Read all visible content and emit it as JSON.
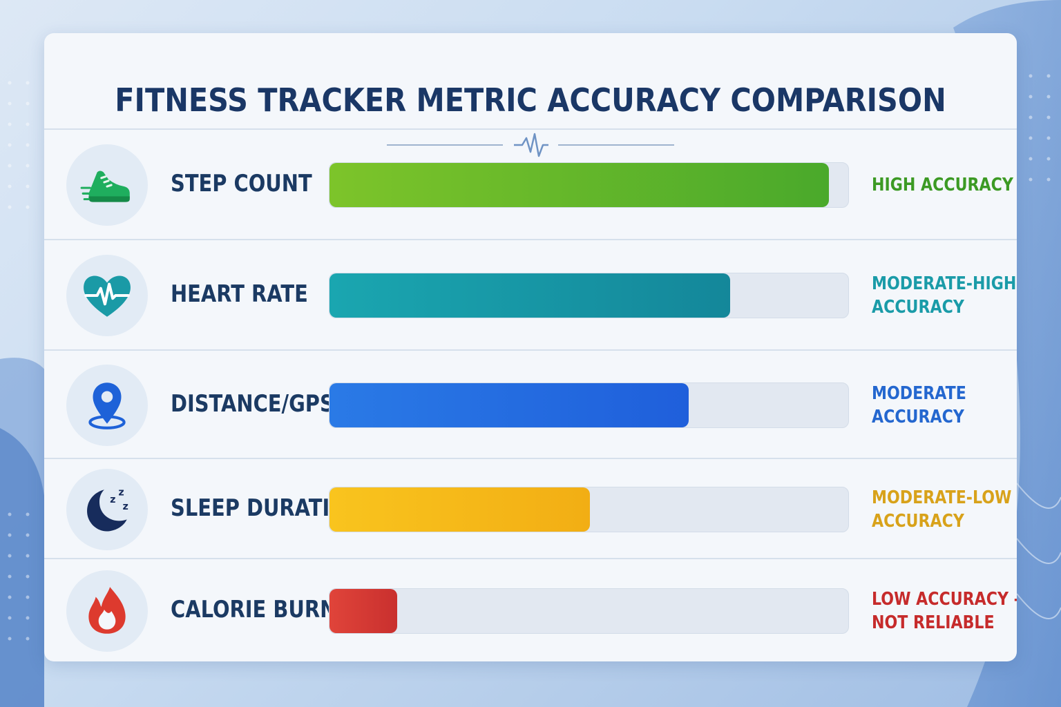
{
  "chart_data": {
    "type": "bar",
    "orientation": "horizontal",
    "title": "FITNESS TRACKER METRIC ACCURACY COMPARISON",
    "xlim": [
      0,
      100
    ],
    "grid": false,
    "legend": "none",
    "categories": [
      "STEP COUNT",
      "HEART RATE",
      "DISTANCE/GPS",
      "SLEEP DURATION",
      "CALORIE BURN"
    ],
    "values": [
      96,
      77,
      69,
      50,
      13
    ],
    "accuracy_labels": [
      [
        "HIGH ACCURACY"
      ],
      [
        "MODERATE-HIGH",
        "ACCURACY"
      ],
      [
        "MODERATE",
        "ACCURACY"
      ],
      [
        "MODERATE-LOW",
        "ACCURACY"
      ],
      [
        "LOW ACCURACY –",
        "NOT RELIABLE"
      ]
    ],
    "colors": [
      "#4caf2a",
      "#169aa8",
      "#2166e0",
      "#f6b818",
      "#d63331"
    ],
    "label_colors": [
      "#3c9a24",
      "#1a9ba8",
      "#2467cf",
      "#d8a21a",
      "#c62b2b"
    ],
    "icons": [
      "running-shoe-icon",
      "heart-pulse-icon",
      "location-pin-icon",
      "moon-sleep-icon",
      "flame-icon"
    ]
  }
}
